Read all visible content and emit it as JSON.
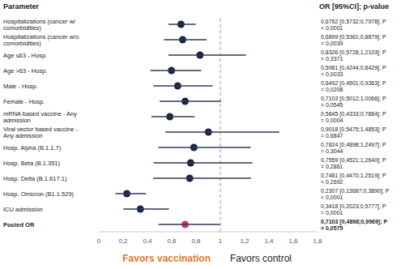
{
  "chart_data": {
    "type": "forest",
    "parameter_header": "Parameter",
    "estimate_header": "OR [95%CI]; p-value",
    "categories": [
      "Hospitalizations (cancer w/ comorbidities)",
      "Hospitalizations (cancer w/o comorbidities)",
      "Age ≤63 - Hosp.",
      "Age >63 - Hosp.",
      "Male - Hosp.",
      "Female - Hosp.",
      "mRNA based vaccine - Any admission",
      "Viral vector based vaccine - Any admission",
      "Hosp. Alpha (B.1.1.7)",
      "Hosp. Beta (B.1.351)",
      "Hosp. Delta (B.1.617.1)",
      "Hosp. Omicron (B1.1.529)",
      "ICU admission",
      "Pooled OR"
    ],
    "values": [
      0.6762,
      0.6899,
      0.8326,
      0.5981,
      0.6492,
      0.7103,
      0.5845,
      0.9018,
      0.7824,
      0.7559,
      0.7481,
      0.2307,
      0.3418,
      0.7103
    ],
    "ci_low": [
      0.5732,
      0.5361,
      0.5728,
      0.4244,
      0.4501,
      0.5012,
      0.4333,
      0.5475,
      0.4898,
      0.4521,
      0.447,
      0.13687,
      0.2023,
      0.4898
    ],
    "ci_high": [
      0.7978,
      0.8879,
      1.2103,
      0.8429,
      0.9363,
      1.0066,
      0.7884,
      1.4853,
      1.2497,
      1.264,
      1.2519,
      0.389,
      0.5777,
      0.9969
    ],
    "value_labels": [
      "0,6762 [0,5732;0,7978]; P < 0,0001",
      "0,6899 [0,5361;0,8879]; P = 0,0039",
      "0,8326 [0,5728;1,2103]; P = 0,3371",
      "0,5981 [0,4244;0,8429]; P = 0,0033",
      "0,6492 [0,4501;0,9363]; P = 0,0208",
      "0,7103 [0,5012;1,0066]; P = 0,0545",
      "0,5845 [0,4333;0,7884]; P = 0,0004",
      "0,9018 [0,5475;1,4853]; P = 0,6847",
      "0,7824 [0,4898;1,2497]; P = 0,3044",
      "0,7559 [0,4521;1,2640]; P = 0,2861",
      "0,7481 [0,4470;1,2519]; P = 0,2692",
      "0,2307 [0,13687;0,3890]; P < 0,0001",
      "0,3418 [0,2023;0,5777]; P = 0,0001",
      "0,7103 [0,4898;0,9969]; P= 0,0575"
    ],
    "colors": [
      "#1c2340",
      "#1c2340",
      "#1c2340",
      "#1c2340",
      "#1c2340",
      "#1c2340",
      "#1c2340",
      "#1c2340",
      "#1c2340",
      "#1c2340",
      "#1c2340",
      "#1c2340",
      "#1c2340",
      "#d6336c"
    ],
    "reference": 1,
    "xlim": [
      0,
      1.8
    ],
    "xticks": [
      0,
      {
        "value": 0.2,
        "label": "0,2"
      },
      {
        "value": 0.4,
        "label": "0,4"
      },
      {
        "value": 0.6,
        "label": "0,6"
      },
      {
        "value": 0.8,
        "label": "0,8"
      },
      1,
      {
        "value": 1.2,
        "label": "1,2"
      },
      {
        "value": 1.4,
        "label": "1,4"
      },
      {
        "value": 1.6,
        "label": "1,6"
      },
      {
        "value": 1.8,
        "label": "1,8"
      }
    ],
    "annotations": [
      {
        "text": "Favors vaccination",
        "color": "#e07b1f"
      },
      {
        "text": "Favors control",
        "color": "#222222"
      }
    ],
    "grid": false
  }
}
